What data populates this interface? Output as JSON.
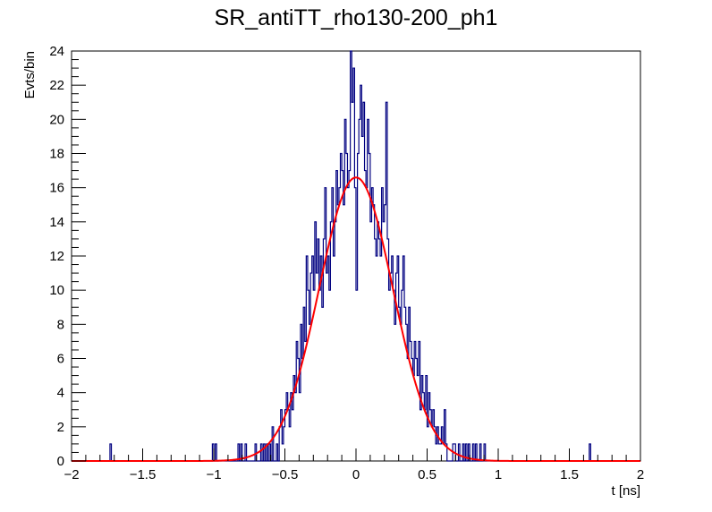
{
  "chart_data": {
    "type": "histogram",
    "title": "SR_antiTT_rho130-200_ph1",
    "xlabel": "t [ns]",
    "ylabel": "Evts/bin",
    "xlim": [
      -2,
      2
    ],
    "ylim": [
      0,
      24
    ],
    "x_ticks": [
      -2,
      -1.5,
      -1,
      -0.5,
      0,
      0.5,
      1,
      1.5,
      2
    ],
    "x_tick_labels": [
      "−2",
      "−1.5",
      "−1",
      "−0.5",
      "0",
      "0.5",
      "1",
      "1.5",
      "2"
    ],
    "y_ticks": [
      0,
      2,
      4,
      6,
      8,
      10,
      12,
      14,
      16,
      18,
      20,
      22,
      24
    ],
    "y_tick_labels": [
      "0",
      "2",
      "4",
      "6",
      "8",
      "10",
      "12",
      "14",
      "16",
      "18",
      "20",
      "22",
      "24"
    ],
    "bins": {
      "nbins": 400,
      "low": -2,
      "high": 2,
      "counts_sparse": [
        [
          -1.725,
          1
        ],
        [
          -1.005,
          1
        ],
        [
          -0.985,
          1
        ],
        [
          -0.825,
          1
        ],
        [
          -0.805,
          1
        ],
        [
          -0.775,
          1
        ],
        [
          -0.705,
          1
        ],
        [
          -0.665,
          1
        ],
        [
          -0.645,
          1
        ],
        [
          -0.625,
          1
        ],
        [
          -0.605,
          1
        ],
        [
          -0.585,
          2
        ],
        [
          -0.555,
          1
        ],
        [
          -0.535,
          2
        ],
        [
          -0.525,
          3
        ],
        [
          -0.515,
          1
        ],
        [
          -0.505,
          2
        ],
        [
          -0.495,
          3
        ],
        [
          -0.485,
          4
        ],
        [
          -0.475,
          3
        ],
        [
          -0.465,
          2
        ],
        [
          -0.455,
          4
        ],
        [
          -0.445,
          3
        ],
        [
          -0.435,
          5
        ],
        [
          -0.425,
          4
        ],
        [
          -0.415,
          7
        ],
        [
          -0.405,
          6
        ],
        [
          -0.395,
          4
        ],
        [
          -0.385,
          8
        ],
        [
          -0.375,
          6
        ],
        [
          -0.365,
          9
        ],
        [
          -0.355,
          7
        ],
        [
          -0.345,
          12
        ],
        [
          -0.335,
          10
        ],
        [
          -0.325,
          8
        ],
        [
          -0.315,
          11
        ],
        [
          -0.305,
          12
        ],
        [
          -0.295,
          10
        ],
        [
          -0.285,
          14
        ],
        [
          -0.275,
          11
        ],
        [
          -0.265,
          13
        ],
        [
          -0.255,
          10
        ],
        [
          -0.245,
          12
        ],
        [
          -0.235,
          9
        ],
        [
          -0.225,
          13
        ],
        [
          -0.215,
          16
        ],
        [
          -0.205,
          11
        ],
        [
          -0.195,
          12
        ],
        [
          -0.185,
          10
        ],
        [
          -0.175,
          14
        ],
        [
          -0.165,
          16
        ],
        [
          -0.155,
          12
        ],
        [
          -0.145,
          14
        ],
        [
          -0.135,
          17
        ],
        [
          -0.125,
          15
        ],
        [
          -0.115,
          16
        ],
        [
          -0.105,
          18
        ],
        [
          -0.095,
          17
        ],
        [
          -0.085,
          15
        ],
        [
          -0.075,
          20
        ],
        [
          -0.065,
          18
        ],
        [
          -0.055,
          16
        ],
        [
          -0.045,
          17
        ],
        [
          -0.035,
          24
        ],
        [
          -0.025,
          21
        ],
        [
          -0.015,
          23
        ],
        [
          -0.005,
          16
        ],
        [
          0.005,
          10
        ],
        [
          0.015,
          18
        ],
        [
          0.025,
          20
        ],
        [
          0.035,
          22
        ],
        [
          0.045,
          19
        ],
        [
          0.055,
          21
        ],
        [
          0.065,
          17
        ],
        [
          0.075,
          16
        ],
        [
          0.085,
          20
        ],
        [
          0.095,
          18
        ],
        [
          0.105,
          14
        ],
        [
          0.115,
          16
        ],
        [
          0.125,
          15
        ],
        [
          0.135,
          13
        ],
        [
          0.145,
          12
        ],
        [
          0.155,
          14
        ],
        [
          0.165,
          13
        ],
        [
          0.175,
          12
        ],
        [
          0.185,
          16
        ],
        [
          0.195,
          14
        ],
        [
          0.205,
          15
        ],
        [
          0.215,
          21
        ],
        [
          0.225,
          13
        ],
        [
          0.235,
          10
        ],
        [
          0.245,
          11
        ],
        [
          0.255,
          12
        ],
        [
          0.265,
          10
        ],
        [
          0.275,
          8
        ],
        [
          0.285,
          11
        ],
        [
          0.295,
          12
        ],
        [
          0.305,
          9
        ],
        [
          0.315,
          8
        ],
        [
          0.325,
          10
        ],
        [
          0.335,
          12
        ],
        [
          0.345,
          9
        ],
        [
          0.355,
          8
        ],
        [
          0.365,
          6
        ],
        [
          0.375,
          9
        ],
        [
          0.385,
          7
        ],
        [
          0.395,
          6
        ],
        [
          0.405,
          5
        ],
        [
          0.415,
          7
        ],
        [
          0.425,
          6
        ],
        [
          0.435,
          5
        ],
        [
          0.445,
          7
        ],
        [
          0.455,
          3
        ],
        [
          0.465,
          5
        ],
        [
          0.475,
          4
        ],
        [
          0.485,
          3
        ],
        [
          0.495,
          5
        ],
        [
          0.505,
          2
        ],
        [
          0.515,
          4
        ],
        [
          0.525,
          3
        ],
        [
          0.535,
          2
        ],
        [
          0.545,
          3
        ],
        [
          0.555,
          2
        ],
        [
          0.565,
          1
        ],
        [
          0.575,
          2
        ],
        [
          0.585,
          1
        ],
        [
          0.595,
          1
        ],
        [
          0.605,
          2
        ],
        [
          0.615,
          1
        ],
        [
          0.625,
          3
        ],
        [
          0.635,
          1
        ],
        [
          0.685,
          1
        ],
        [
          0.695,
          1
        ],
        [
          0.725,
          1
        ],
        [
          0.755,
          1
        ],
        [
          0.775,
          1
        ],
        [
          0.795,
          1
        ],
        [
          0.825,
          1
        ],
        [
          0.845,
          1
        ],
        [
          0.875,
          1
        ],
        [
          0.905,
          1
        ],
        [
          1.645,
          1
        ]
      ]
    },
    "fit": {
      "type": "gaussian",
      "amplitude": 16.6,
      "mean": 0.0,
      "sigma": 0.26,
      "range": [
        -2,
        2
      ]
    },
    "colors": {
      "histogram": "#000080",
      "fit": "#ff0000",
      "axis": "#000000"
    },
    "grid": false,
    "legend": "none"
  }
}
